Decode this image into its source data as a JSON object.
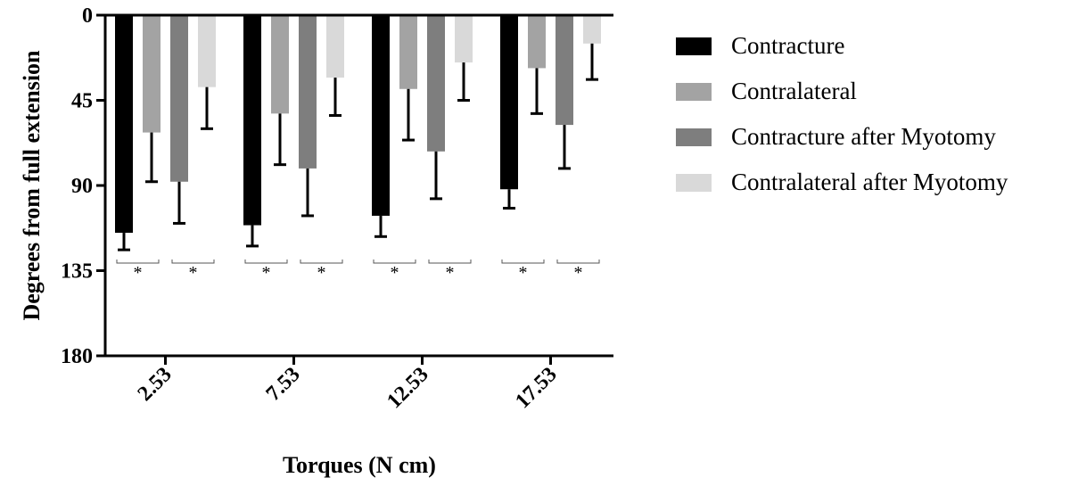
{
  "chart_data": {
    "type": "bar",
    "title": "",
    "xlabel": "Torques (N cm)",
    "ylabel": "Degrees from full extension",
    "categories": [
      "2.53",
      "7.53",
      "12.53",
      "17.53"
    ],
    "yticks": [
      0,
      45,
      90,
      135,
      180
    ],
    "ylim": [
      0,
      180
    ],
    "y_axis_inverted": true,
    "legend_position": "right",
    "grid": false,
    "series": [
      {
        "name": "Contracture",
        "color": "#000000",
        "values": [
          115,
          111,
          106,
          92
        ],
        "errors": [
          9,
          11,
          11,
          10
        ]
      },
      {
        "name": "Contralateral",
        "color": "#a3a3a3",
        "values": [
          62,
          52,
          39,
          28
        ],
        "errors": [
          26,
          27,
          27,
          24
        ]
      },
      {
        "name": "Contracture after Myotomy",
        "color": "#7e7e7e",
        "values": [
          88,
          81,
          72,
          58
        ],
        "errors": [
          22,
          25,
          25,
          23
        ]
      },
      {
        "name": "Contralateral after Myotomy",
        "color": "#d9d9d9",
        "values": [
          38,
          33,
          25,
          15
        ],
        "errors": [
          22,
          20,
          20,
          19
        ]
      }
    ],
    "significance": {
      "marker": "*",
      "pairs_per_category": 2
    }
  }
}
